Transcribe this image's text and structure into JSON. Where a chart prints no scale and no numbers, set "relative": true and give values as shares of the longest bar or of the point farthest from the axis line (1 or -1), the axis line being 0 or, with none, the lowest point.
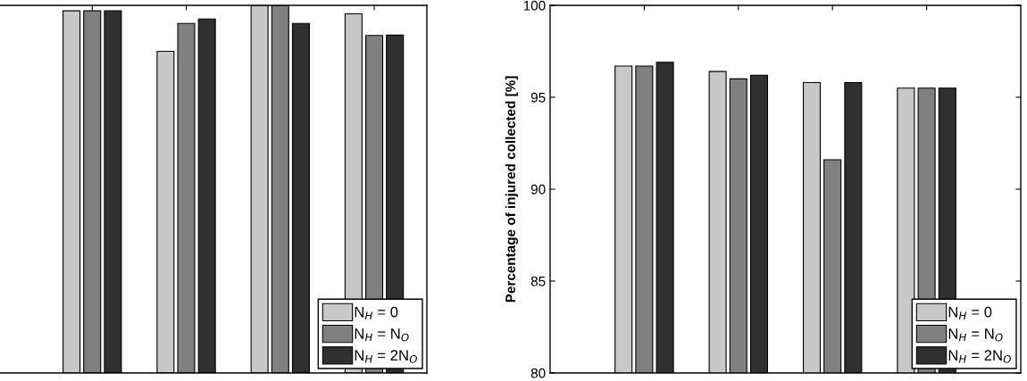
{
  "chart_data": [
    {
      "type": "bar",
      "relative": true,
      "categories": [
        null,
        null,
        null,
        null
      ],
      "tick_labels": false,
      "legend": "bottom right",
      "grid": false,
      "series": [
        {
          "name": "N$_{H}$ = 0",
          "color": "#c8c8c8",
          "values": [
            0.985,
            0.875,
            1,
            0.977
          ]
        },
        {
          "name": "N$_{H}$ = N$_{O}$",
          "color": "#808080",
          "values": [
            0.985,
            0.951,
            1,
            0.918
          ]
        },
        {
          "name": "N$_{H}$ = 2N$_{O}$",
          "color": "#303030",
          "values": [
            0.985,
            0.963,
            0.951,
            0.919
          ]
        }
      ]
    },
    {
      "type": "bar",
      "ylabel": "Percentage of injured collected [%]",
      "categories": [
        null,
        null,
        null,
        null
      ],
      "ylim": [
        80,
        100
      ],
      "yticks": [
        80,
        85,
        90,
        95,
        100
      ],
      "tick_labels": "y",
      "legend": "bottom right",
      "grid": false,
      "series": [
        {
          "name": "N$_{H}$ = 0",
          "color": "#c8c8c8",
          "values": [
            96.7,
            96.4,
            95.8,
            95.5
          ]
        },
        {
          "name": "N$_{H}$ = N$_{O}$",
          "color": "#808080",
          "values": [
            96.7,
            96.0,
            91.6,
            95.5
          ]
        },
        {
          "name": "N$_{H}$ = 2N$_{O}$",
          "color": "#303030",
          "values": [
            96.9,
            96.2,
            95.8,
            95.5
          ]
        }
      ]
    }
  ]
}
